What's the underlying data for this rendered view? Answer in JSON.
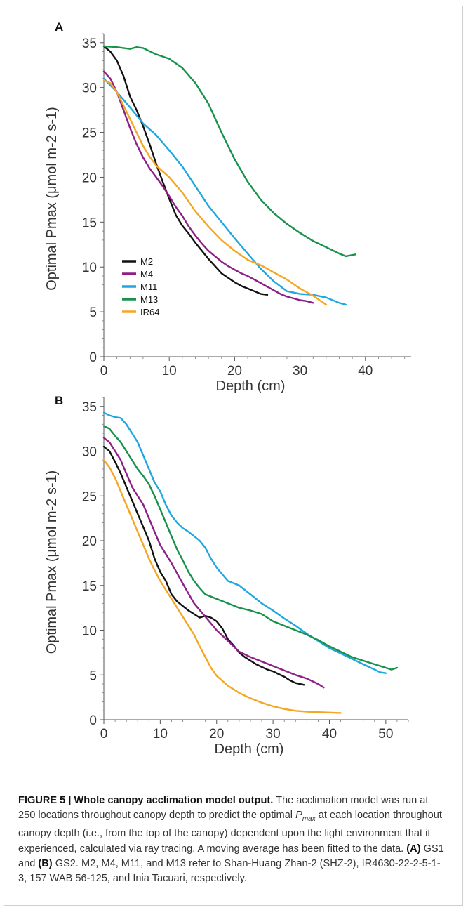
{
  "chart_data": [
    {
      "panel": "A",
      "type": "line",
      "xlabel": "Depth (cm)",
      "ylabel": "Optimal Pmax (μmol m-2 s-1)",
      "xlim": [
        0,
        47
      ],
      "ylim": [
        0,
        36
      ],
      "xticks": [
        0,
        10,
        20,
        30,
        40
      ],
      "yticks": [
        0,
        5,
        10,
        15,
        20,
        25,
        30,
        35
      ],
      "legend": "lower-left",
      "series": [
        {
          "name": "M2",
          "color": "#111111",
          "x": [
            0,
            1,
            2,
            3,
            4,
            5,
            6,
            7,
            8,
            9,
            10,
            11,
            12,
            13,
            14,
            15,
            16,
            17,
            18,
            19,
            20,
            21,
            22,
            23,
            24,
            25
          ],
          "y": [
            34.6,
            34,
            33,
            31.3,
            29,
            27.5,
            25.7,
            23.7,
            21.5,
            19.5,
            17.6,
            15.8,
            14.6,
            13.7,
            12.7,
            11.8,
            10.9,
            10.1,
            9.3,
            8.8,
            8.3,
            7.9,
            7.6,
            7.3,
            7.0,
            6.9
          ]
        },
        {
          "name": "M4",
          "color": "#8e1f87",
          "x": [
            0,
            1,
            2,
            3,
            4,
            5,
            6,
            7,
            8,
            9,
            10,
            11,
            12,
            13,
            14,
            15,
            16,
            17,
            18,
            19,
            20,
            21,
            22,
            23,
            24,
            25,
            26,
            27,
            28,
            29,
            30,
            31,
            32
          ],
          "y": [
            31.8,
            31,
            29.5,
            27.5,
            25.5,
            23.7,
            22.2,
            21,
            20,
            19,
            17.9,
            16.7,
            15.7,
            14.5,
            13.5,
            12.6,
            11.8,
            11.2,
            10.6,
            10.1,
            9.7,
            9.3,
            9.0,
            8.6,
            8.2,
            7.8,
            7.4,
            7.0,
            6.7,
            6.5,
            6.3,
            6.2,
            6.0
          ]
        },
        {
          "name": "M11",
          "color": "#1ea7e1",
          "x": [
            0,
            2,
            4,
            6,
            8,
            10,
            12,
            14,
            16,
            18,
            20,
            22,
            24,
            26,
            28,
            30,
            32,
            34,
            36,
            37
          ],
          "y": [
            31.0,
            29.5,
            27.8,
            26,
            24.7,
            23,
            21.2,
            19.0,
            16.8,
            15.0,
            13.2,
            11.5,
            9.8,
            8.4,
            7.3,
            7.0,
            6.9,
            6.6,
            6.0,
            5.8
          ]
        },
        {
          "name": "M13",
          "color": "#18924b",
          "x": [
            0,
            2,
            4,
            5,
            6,
            8,
            10,
            12,
            14,
            16,
            18,
            20,
            22,
            24,
            26,
            28,
            30,
            32,
            34,
            36,
            37,
            38.5
          ],
          "y": [
            34.6,
            34.5,
            34.3,
            34.5,
            34.4,
            33.7,
            33.2,
            32.2,
            30.5,
            28.2,
            25.0,
            22.0,
            19.5,
            17.5,
            16.0,
            14.8,
            13.8,
            12.9,
            12.2,
            11.5,
            11.2,
            11.4
          ]
        },
        {
          "name": "IR64",
          "color": "#f5a623",
          "x": [
            0,
            1,
            2,
            3,
            4,
            5,
            6,
            7,
            8,
            10,
            12,
            14,
            16,
            18,
            20,
            22,
            24,
            26,
            28,
            30,
            32,
            34
          ],
          "y": [
            30.8,
            30.5,
            29.5,
            28,
            26.5,
            25.0,
            23.5,
            22.3,
            21.3,
            20,
            18.3,
            16.2,
            14.5,
            13.0,
            11.8,
            10.8,
            10.2,
            9.4,
            8.6,
            7.6,
            6.8,
            5.8
          ]
        }
      ]
    },
    {
      "panel": "B",
      "type": "line",
      "xlabel": "Depth (cm)",
      "ylabel": "Optimal Pmax (μmol m-2 s-1)",
      "xlim": [
        0,
        54
      ],
      "ylim": [
        0,
        36
      ],
      "xticks": [
        0,
        10,
        20,
        30,
        40,
        50
      ],
      "yticks": [
        0,
        5,
        10,
        15,
        20,
        25,
        30,
        35
      ],
      "series": [
        {
          "name": "M2",
          "color": "#111111",
          "x": [
            0,
            1,
            2,
            3,
            4,
            5,
            6,
            7,
            8,
            9,
            10,
            11,
            12,
            13,
            14,
            15,
            16,
            17,
            18,
            19,
            20,
            21,
            22,
            23,
            24,
            25,
            26,
            27,
            28,
            29,
            30,
            31,
            32,
            33,
            34,
            35.5
          ],
          "y": [
            30.5,
            30,
            28.8,
            27.5,
            26,
            24.5,
            23,
            21.5,
            20,
            18,
            16.5,
            15.5,
            14,
            13.2,
            12.7,
            12.2,
            11.8,
            11.4,
            11.6,
            11.4,
            11.0,
            10.2,
            9.0,
            8.3,
            7.5,
            7.0,
            6.6,
            6.2,
            5.9,
            5.6,
            5.4,
            5.1,
            4.8,
            4.4,
            4.1,
            3.9
          ]
        },
        {
          "name": "M4",
          "color": "#8e1f87",
          "x": [
            0,
            1,
            2,
            3,
            4,
            5,
            6,
            7,
            8,
            9,
            10,
            12,
            14,
            16,
            18,
            20,
            22,
            24,
            26,
            28,
            30,
            32,
            34,
            36,
            38,
            39
          ],
          "y": [
            31.5,
            31.0,
            30.0,
            29.0,
            27.5,
            26,
            25,
            24,
            22.5,
            21,
            19.5,
            17.5,
            15.2,
            13.0,
            11.5,
            10.0,
            8.8,
            7.6,
            7.0,
            6.5,
            6.0,
            5.5,
            5.0,
            4.6,
            4.0,
            3.6
          ]
        },
        {
          "name": "M11",
          "color": "#1ea7e1",
          "x": [
            0,
            1,
            2,
            3,
            4,
            5,
            6,
            7,
            8,
            9,
            10,
            11,
            12,
            13,
            14,
            15,
            16,
            17,
            18,
            19,
            20,
            22,
            24,
            26,
            28,
            30,
            32,
            34,
            36,
            38,
            40,
            42,
            44,
            46,
            48,
            49,
            50
          ],
          "y": [
            34.3,
            34,
            33.8,
            33.7,
            33.0,
            32.0,
            31.0,
            29.5,
            28.0,
            26.5,
            25.5,
            24.0,
            22.8,
            22.0,
            21.4,
            21.0,
            20.5,
            20.0,
            19.2,
            18.0,
            17.0,
            15.5,
            15.0,
            14.0,
            13.0,
            12.2,
            11.3,
            10.5,
            9.6,
            8.8,
            8.0,
            7.4,
            6.8,
            6.2,
            5.6,
            5.3,
            5.2
          ]
        },
        {
          "name": "M13",
          "color": "#18924b",
          "x": [
            0,
            1,
            2,
            3,
            4,
            5,
            6,
            7,
            8,
            9,
            10,
            11,
            12,
            13,
            14,
            15,
            16,
            17,
            18,
            20,
            22,
            24,
            26,
            28,
            30,
            32,
            34,
            36,
            38,
            40,
            42,
            44,
            46,
            48,
            50,
            51,
            52
          ],
          "y": [
            32.8,
            32.5,
            31.7,
            31.0,
            30.0,
            29.0,
            28.0,
            27.2,
            26.3,
            25.0,
            23.5,
            22.0,
            20.5,
            19.0,
            17.8,
            16.5,
            15.5,
            14.7,
            14.0,
            13.5,
            13.0,
            12.5,
            12.2,
            11.8,
            11.0,
            10.5,
            10.0,
            9.5,
            8.9,
            8.2,
            7.6,
            7.0,
            6.6,
            6.2,
            5.8,
            5.6,
            5.8
          ]
        },
        {
          "name": "IR64",
          "color": "#f5a623",
          "x": [
            0,
            1,
            2,
            3,
            4,
            5,
            6,
            7,
            8,
            9,
            10,
            11,
            12,
            13,
            14,
            15,
            16,
            17,
            18,
            19,
            20,
            22,
            24,
            26,
            28,
            30,
            32,
            34,
            36,
            38,
            40,
            42
          ],
          "y": [
            29.0,
            28.2,
            27.0,
            25.5,
            24.0,
            22.5,
            21.0,
            19.5,
            18.0,
            16.7,
            15.5,
            14.5,
            13.5,
            12.5,
            11.5,
            10.5,
            9.5,
            8.2,
            7.0,
            5.8,
            4.9,
            3.8,
            3.0,
            2.4,
            1.9,
            1.5,
            1.2,
            1.0,
            0.9,
            0.85,
            0.8,
            0.75
          ]
        }
      ]
    }
  ],
  "caption": {
    "title": "FIGURE 5 | Whole canopy acclimation model output.",
    "text_1": " The acclimation model was run at 250 locations throughout canopy depth to predict the optimal ",
    "pmax_main": "P",
    "pmax_sub": "max",
    "text_2": " at each location throughout canopy depth (i.e., from the top of the canopy) dependent upon the light environment that it experienced, calculated via ray tracing. A moving average has been fitted to the data. ",
    "label_a": "(A)",
    "text_3": " GS1 and ",
    "label_b": "(B)",
    "text_4": " GS2. M2, M4, M11, and M13 refer to Shan-Huang Zhan-2 (SHZ-2), IR4630-22-2-5-1-3, 157 WAB 56-125, and Inia Tacuari, respectively."
  }
}
